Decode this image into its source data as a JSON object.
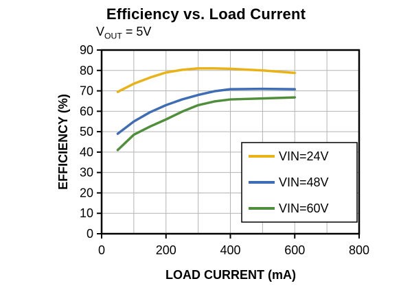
{
  "page": {
    "background": "#ffffff"
  },
  "header": {
    "title": "Efficiency vs. Load Current",
    "subtitle_pre": "V",
    "subtitle_sub": "OUT",
    "subtitle_post": " = 5V"
  },
  "chart_data": {
    "type": "line",
    "title": "Efficiency vs. Load Current",
    "subtitle": "VOUT = 5V",
    "xlabel": "LOAD CURRENT (mA)",
    "ylabel": "EFFICIENCY (%)",
    "xlim": [
      0,
      800
    ],
    "ylim": [
      0,
      90
    ],
    "x_major_ticks": [
      0,
      200,
      400,
      600,
      800
    ],
    "x_gridline_step": 100,
    "y_gridline_step": 10,
    "grid": true,
    "grid_color": "#b3b3b3",
    "legend_position": "inside-bottom-right",
    "series": [
      {
        "name": "VIN=24V",
        "color": "#E9B318",
        "points": [
          [
            50,
            69.5
          ],
          [
            100,
            73.5
          ],
          [
            150,
            76.5
          ],
          [
            200,
            79
          ],
          [
            250,
            80.3
          ],
          [
            300,
            81
          ],
          [
            350,
            81
          ],
          [
            400,
            80.8
          ],
          [
            500,
            80
          ],
          [
            600,
            78.8
          ]
        ]
      },
      {
        "name": "VIN=48V",
        "color": "#3E6DB5",
        "points": [
          [
            50,
            49
          ],
          [
            100,
            55
          ],
          [
            150,
            59.5
          ],
          [
            200,
            63
          ],
          [
            250,
            65.8
          ],
          [
            300,
            68
          ],
          [
            350,
            69.8
          ],
          [
            400,
            70.8
          ],
          [
            500,
            71
          ],
          [
            600,
            70.8
          ]
        ]
      },
      {
        "name": "VIN=60V",
        "color": "#4F8F3B",
        "points": [
          [
            50,
            41
          ],
          [
            100,
            48.5
          ],
          [
            150,
            52.5
          ],
          [
            200,
            56
          ],
          [
            250,
            59.8
          ],
          [
            300,
            63
          ],
          [
            350,
            64.8
          ],
          [
            400,
            65.8
          ],
          [
            500,
            66.3
          ],
          [
            600,
            66.8
          ]
        ]
      }
    ]
  }
}
